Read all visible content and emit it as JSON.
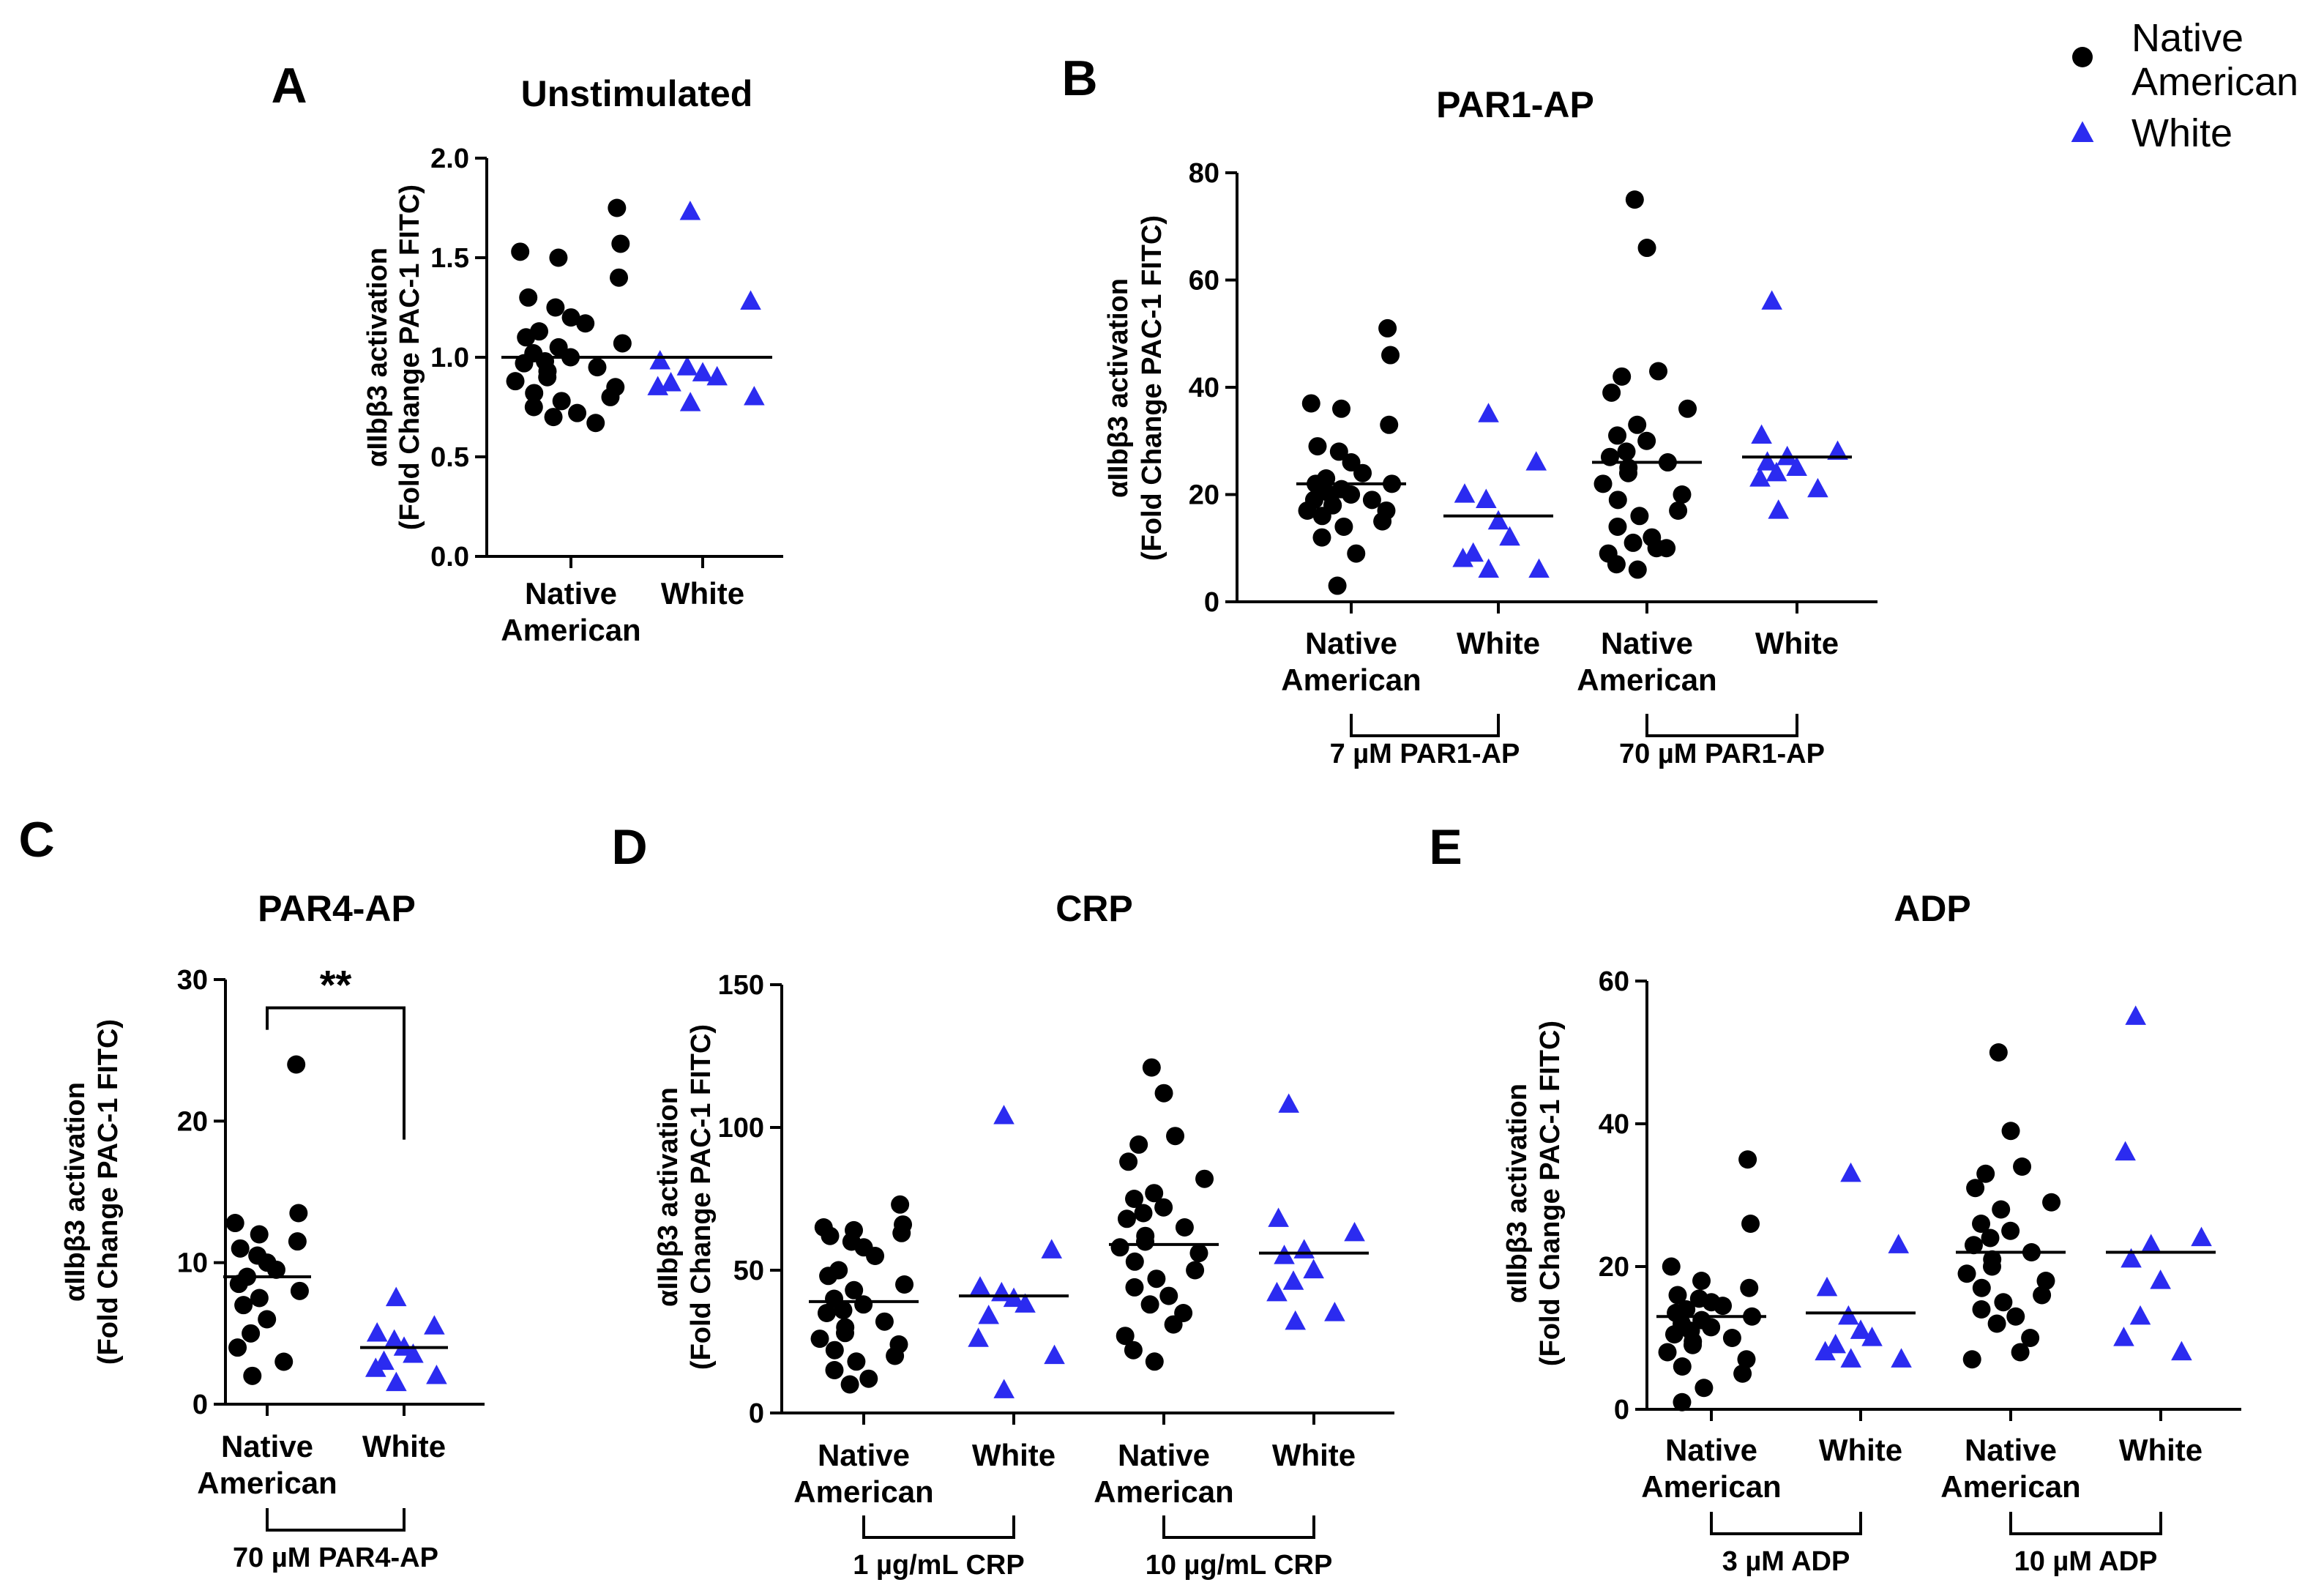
{
  "colors": {
    "native": "#000000",
    "white": "#2b2bf0",
    "axis": "#000000"
  },
  "legend": {
    "position": "top-right",
    "items": [
      {
        "label_lines": [
          "Native",
          "American"
        ],
        "series": "native",
        "marker": "circle"
      },
      {
        "label_lines": [
          "White"
        ],
        "series": "white",
        "marker": "triangle"
      }
    ]
  },
  "chart_data": [
    {
      "id": "A",
      "letter": "A",
      "type": "scatter",
      "title": "Unstimulated",
      "ylabel_lines": [
        "αIIbβ3 activation",
        "(Fold  Change PAC-1  FITC)"
      ],
      "ylim": [
        0,
        2.0
      ],
      "yticks": [
        0,
        0.5,
        1.0,
        1.5,
        2.0
      ],
      "ytick_labels": [
        "0.0",
        "0.5",
        "1.0",
        "1.5",
        "2.0"
      ],
      "categories": [
        {
          "label_lines": [
            "Native",
            "American"
          ],
          "series": "native"
        },
        {
          "label_lines": [
            "White"
          ],
          "series": "white"
        }
      ],
      "groups": [
        {
          "series": "native",
          "mean": 1.0,
          "values": [
            1.75,
            1.57,
            1.53,
            1.5,
            1.4,
            1.3,
            1.25,
            1.2,
            1.17,
            1.13,
            1.1,
            1.07,
            1.05,
            1.02,
            1.0,
            0.98,
            0.97,
            0.95,
            0.93,
            0.9,
            0.88,
            0.85,
            0.82,
            0.8,
            0.78,
            0.75,
            0.72,
            0.7,
            0.67
          ]
        },
        {
          "series": "white",
          "mean": 1.0,
          "values": [
            1.73,
            1.28,
            0.98,
            0.95,
            0.92,
            0.9,
            0.87,
            0.85,
            0.8,
            0.77
          ]
        }
      ],
      "brackets": [],
      "significance": []
    },
    {
      "id": "B",
      "letter": "B",
      "type": "scatter",
      "title": "PAR1-AP",
      "ylabel_lines": [
        "αIIbβ3 activation",
        "(Fold  Change PAC-1  FITC)"
      ],
      "ylim": [
        0,
        80
      ],
      "yticks": [
        0,
        20,
        40,
        60,
        80
      ],
      "ytick_labels": [
        "0",
        "20",
        "40",
        "60",
        "80"
      ],
      "categories": [
        {
          "label_lines": [
            "Native",
            "American"
          ],
          "series": "native"
        },
        {
          "label_lines": [
            "White"
          ],
          "series": "white"
        },
        {
          "label_lines": [
            "Native",
            "American"
          ],
          "series": "native"
        },
        {
          "label_lines": [
            "White"
          ],
          "series": "white"
        }
      ],
      "groups": [
        {
          "series": "native",
          "mean": 22,
          "values": [
            51,
            46,
            37,
            36,
            33,
            29,
            28,
            26,
            24,
            23,
            22,
            22,
            21,
            21,
            20,
            20,
            19,
            19,
            18,
            18,
            17,
            17,
            16,
            15,
            14,
            12,
            9,
            3
          ]
        },
        {
          "series": "white",
          "mean": 16,
          "values": [
            35,
            26,
            20,
            19,
            15,
            12,
            9,
            8,
            6,
            6
          ]
        },
        {
          "series": "native",
          "mean": 26,
          "values": [
            75,
            66,
            43,
            42,
            39,
            36,
            33,
            31,
            30,
            28,
            27,
            26,
            25,
            24,
            22,
            20,
            19,
            17,
            16,
            14,
            12,
            11,
            10,
            10,
            9,
            7,
            6
          ]
        },
        {
          "series": "white",
          "mean": 27,
          "values": [
            56,
            31,
            28,
            27,
            26,
            25,
            24,
            23,
            21,
            17
          ]
        }
      ],
      "brackets": [
        {
          "from": 0,
          "to": 1,
          "label": "7 µM   PAR1-AP"
        },
        {
          "from": 2,
          "to": 3,
          "label": "70 µM   PAR1-AP"
        }
      ],
      "significance": []
    },
    {
      "id": "C",
      "letter": "C",
      "type": "scatter",
      "title": "PAR4-AP",
      "ylabel_lines": [
        "αIIbβ3 activation",
        "(Fold  Change PAC-1  FITC)"
      ],
      "ylim": [
        0,
        30
      ],
      "yticks": [
        0,
        10,
        20,
        30
      ],
      "ytick_labels": [
        "0",
        "10",
        "20",
        "30"
      ],
      "categories": [
        {
          "label_lines": [
            "Native",
            "American"
          ],
          "series": "native"
        },
        {
          "label_lines": [
            "White"
          ],
          "series": "white"
        }
      ],
      "groups": [
        {
          "series": "native",
          "mean": 9,
          "values": [
            24,
            13.5,
            12.8,
            12.0,
            11.5,
            11.0,
            10.5,
            10.0,
            9.5,
            9.0,
            8.5,
            8.0,
            7.5,
            7.0,
            6.0,
            5.0,
            4.0,
            3.0,
            2.0
          ]
        },
        {
          "series": "white",
          "mean": 4,
          "values": [
            7.5,
            5.5,
            5.0,
            4.5,
            4.0,
            3.5,
            3.0,
            2.5,
            2.0,
            1.5
          ]
        }
      ],
      "brackets": [
        {
          "from": 0,
          "to": 1,
          "label": "70 µM   PAR4-AP"
        }
      ],
      "significance": [
        {
          "from": 0,
          "to": 1,
          "y": 28,
          "label": "**"
        }
      ]
    },
    {
      "id": "D",
      "letter": "D",
      "type": "scatter",
      "title": "CRP",
      "ylabel_lines": [
        "αIIbβ3 activation",
        "(Fold  Change PAC-1  FITC)"
      ],
      "ylim": [
        0,
        150
      ],
      "yticks": [
        0,
        50,
        100,
        150
      ],
      "ytick_labels": [
        "0",
        "50",
        "100",
        "150"
      ],
      "categories": [
        {
          "label_lines": [
            "Native",
            "American"
          ],
          "series": "native"
        },
        {
          "label_lines": [
            "White"
          ],
          "series": "white"
        },
        {
          "label_lines": [
            "Native",
            "American"
          ],
          "series": "native"
        },
        {
          "label_lines": [
            "White"
          ],
          "series": "white"
        }
      ],
      "groups": [
        {
          "series": "native",
          "mean": 39,
          "values": [
            73,
            66,
            65,
            64,
            63,
            62,
            60,
            58,
            55,
            50,
            48,
            45,
            43,
            40,
            38,
            36,
            35,
            32,
            30,
            28,
            26,
            24,
            22,
            20,
            18,
            15,
            12,
            10
          ]
        },
        {
          "series": "white",
          "mean": 41,
          "values": [
            104,
            57,
            44,
            42,
            40,
            38,
            34,
            26,
            20,
            8
          ]
        },
        {
          "series": "native",
          "mean": 59,
          "values": [
            121,
            112,
            97,
            94,
            88,
            82,
            77,
            75,
            72,
            70,
            68,
            65,
            62,
            60,
            58,
            56,
            53,
            50,
            47,
            44,
            41,
            38,
            35,
            31,
            27,
            22,
            18
          ]
        },
        {
          "series": "white",
          "mean": 56,
          "values": [
            108,
            68,
            63,
            57,
            55,
            50,
            46,
            42,
            35,
            32
          ]
        }
      ],
      "brackets": [
        {
          "from": 0,
          "to": 1,
          "label": "1 µg/mL   CRP"
        },
        {
          "from": 2,
          "to": 3,
          "label": "10 µg/mL   CRP"
        }
      ],
      "significance": []
    },
    {
      "id": "E",
      "letter": "E",
      "type": "scatter",
      "title": "ADP",
      "ylabel_lines": [
        "αIIbβ3 activation",
        "(Fold  Change PAC-1  FITC)"
      ],
      "ylim": [
        0,
        60
      ],
      "yticks": [
        0,
        20,
        40,
        60
      ],
      "ytick_labels": [
        "0",
        "20",
        "40",
        "60"
      ],
      "categories": [
        {
          "label_lines": [
            "Native",
            "American"
          ],
          "series": "native"
        },
        {
          "label_lines": [
            "White"
          ],
          "series": "white"
        },
        {
          "label_lines": [
            "Native",
            "American"
          ],
          "series": "native"
        },
        {
          "label_lines": [
            "White"
          ],
          "series": "white"
        }
      ],
      "groups": [
        {
          "series": "native",
          "mean": 13,
          "values": [
            35,
            26,
            20,
            18,
            17,
            16,
            15.5,
            15,
            14.5,
            14,
            13.5,
            13,
            12.5,
            12,
            11.5,
            11,
            10.5,
            10,
            9.5,
            9,
            8,
            7,
            6,
            5,
            3,
            1
          ]
        },
        {
          "series": "white",
          "mean": 13.5,
          "values": [
            33,
            23,
            17,
            13,
            11,
            10,
            9,
            8,
            7,
            7
          ]
        },
        {
          "series": "native",
          "mean": 22,
          "values": [
            50,
            39,
            34,
            33,
            31,
            29,
            28,
            26,
            25,
            24,
            23,
            22,
            21,
            20,
            19,
            18,
            17,
            16,
            15,
            14,
            13,
            12,
            10,
            8,
            7
          ]
        },
        {
          "series": "white",
          "mean": 22,
          "values": [
            55,
            36,
            24,
            23,
            21,
            18,
            13,
            10,
            8
          ]
        }
      ],
      "brackets": [
        {
          "from": 0,
          "to": 1,
          "label": "3 µM   ADP"
        },
        {
          "from": 2,
          "to": 3,
          "label": "10 µM   ADP"
        }
      ],
      "significance": []
    }
  ]
}
